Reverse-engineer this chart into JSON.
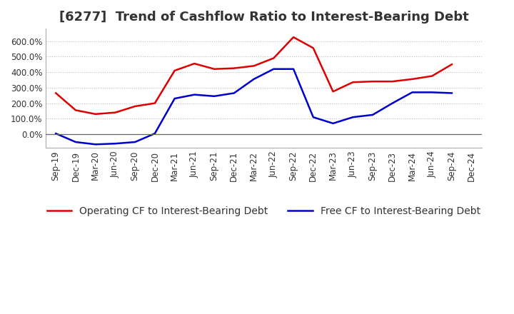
{
  "title": "[6277]  Trend of Cashflow Ratio to Interest-Bearing Debt",
  "x_labels": [
    "Sep-19",
    "Dec-19",
    "Mar-20",
    "Jun-20",
    "Sep-20",
    "Dec-20",
    "Mar-21",
    "Jun-21",
    "Sep-21",
    "Dec-21",
    "Mar-22",
    "Jun-22",
    "Sep-22",
    "Dec-22",
    "Mar-23",
    "Jun-23",
    "Sep-23",
    "Dec-23",
    "Mar-24",
    "Jun-24",
    "Sep-24",
    "Dec-24"
  ],
  "operating_cf": [
    2.65,
    1.55,
    1.3,
    1.4,
    1.8,
    2.0,
    4.1,
    4.55,
    4.2,
    4.25,
    4.4,
    4.9,
    6.25,
    5.55,
    2.75,
    3.35,
    3.4,
    3.4,
    3.55,
    3.75,
    4.5,
    null
  ],
  "free_cf": [
    0.05,
    -0.5,
    -0.65,
    -0.6,
    -0.5,
    0.05,
    2.3,
    2.55,
    2.45,
    2.65,
    3.55,
    4.2,
    4.2,
    1.1,
    0.7,
    1.1,
    1.25,
    2.0,
    2.7,
    2.7,
    2.65,
    null
  ],
  "operating_color": "#dd0000",
  "free_color": "#0000cc",
  "legend_operating": "Operating CF to Interest-Bearing Debt",
  "legend_free": "Free CF to Interest-Bearing Debt",
  "ylim": [
    -0.85,
    6.8
  ],
  "yticks": [
    0.0,
    1.0,
    2.0,
    3.0,
    4.0,
    5.0,
    6.0
  ],
  "ytick_labels": [
    "0.0%",
    "100.0%",
    "200.0%",
    "300.0%",
    "400.0%",
    "500.0%",
    "600.0%"
  ],
  "grid_color": "#bbbbbb",
  "bg_color": "#ffffff",
  "plot_bg": "#ffffff",
  "line_width": 1.8,
  "title_fontsize": 13,
  "tick_fontsize": 8.5,
  "legend_fontsize": 10
}
